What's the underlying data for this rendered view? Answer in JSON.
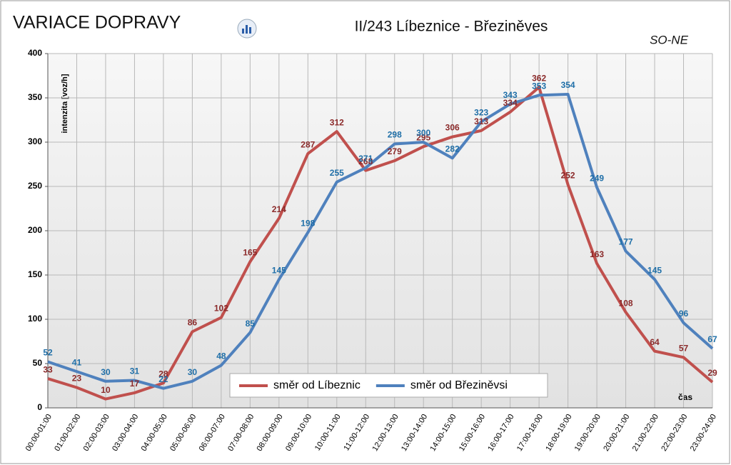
{
  "chart_data": {
    "type": "line",
    "title": "VARIACE DOPRAVY",
    "subtitle": "II/243 Líbeznice - Březiněves",
    "note": "SO-NE",
    "y_label": "intenzita  [voz/h]",
    "x_label": "čas",
    "categories": [
      "00:00-01:00",
      "01:00-02:00",
      "02:00-03:00",
      "03:00-04:00",
      "04:00-05:00",
      "05:00-06:00",
      "06:00-07:00",
      "07:00-08:00",
      "08:00-09:00",
      "09:00-10:00",
      "10:00-11:00",
      "11:00-12:00",
      "12:00-13:00",
      "13:00-14:00",
      "14:00-15:00",
      "15:00-16:00",
      "16:00-17:00",
      "17:00-18:00",
      "18:00-19:00",
      "19:00-20:00",
      "20:00-21:00",
      "21:00-22:00",
      "22:00-23:00",
      "23:00-24:00"
    ],
    "series": [
      {
        "name": "směr od Líbeznic",
        "color": "#c0504d",
        "label_color": "#8b2a2a",
        "values": [
          33,
          23,
          10,
          17,
          28,
          86,
          102,
          165,
          214,
          287,
          312,
          268,
          279,
          295,
          306,
          313,
          334,
          362,
          252,
          163,
          108,
          64,
          57,
          29
        ]
      },
      {
        "name": "směr od Březiněvsi",
        "color": "#4f81bd",
        "label_color": "#1f6fa8",
        "values": [
          52,
          41,
          30,
          31,
          22,
          30,
          48,
          85,
          145,
          198,
          255,
          271,
          298,
          300,
          282,
          323,
          343,
          353,
          354,
          249,
          177,
          145,
          96,
          67
        ]
      }
    ],
    "ylim": [
      0,
      400
    ],
    "yticks": [
      0,
      50,
      100,
      150,
      200,
      250,
      300,
      350,
      400
    ],
    "grid": true
  }
}
